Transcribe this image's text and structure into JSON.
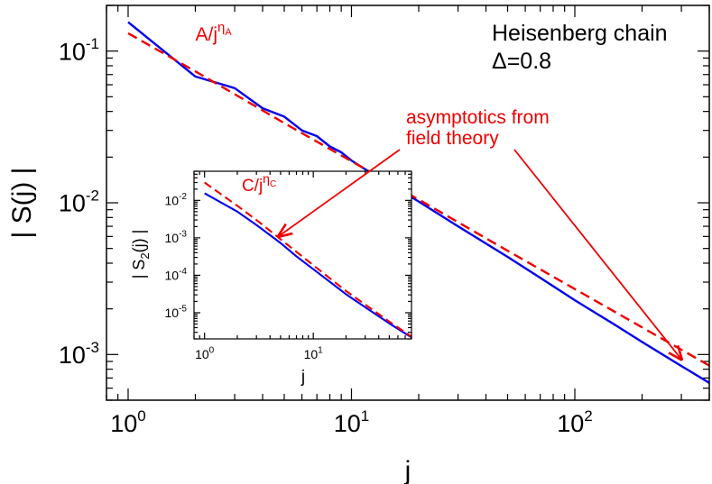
{
  "chart_data": [
    {
      "type": "line",
      "panel": "main",
      "xlabel": "j",
      "ylabel": "| S(j) |",
      "xscale": "log",
      "yscale": "log",
      "xlim": [
        0.8,
        400
      ],
      "ylim": [
        0.0005,
        0.2
      ],
      "xticks": [
        {
          "value": 1,
          "base": "10",
          "exp": "0"
        },
        {
          "value": 10,
          "base": "10",
          "exp": "1"
        },
        {
          "value": 100,
          "base": "10",
          "exp": "2"
        }
      ],
      "yticks": [
        {
          "value": 0.1,
          "base": "10",
          "exp": "-1"
        },
        {
          "value": 0.01,
          "base": "10",
          "exp": "-2"
        },
        {
          "value": 0.001,
          "base": "10",
          "exp": "-3"
        }
      ],
      "legend_text": {
        "line1": "Heisenberg chain",
        "line2": "Δ=0.8"
      },
      "series": [
        {
          "style": "solid",
          "color": "#0000ee",
          "x": [
            1,
            2,
            3,
            4,
            5,
            6,
            7,
            8,
            9,
            10,
            12,
            15,
            20,
            30,
            50,
            70,
            100,
            150,
            200,
            300,
            400
          ],
          "y": [
            0.155,
            0.068,
            0.057,
            0.042,
            0.037,
            0.03,
            0.0275,
            0.0235,
            0.0215,
            0.019,
            0.016,
            0.0132,
            0.0102,
            0.007,
            0.0044,
            0.0032,
            0.00228,
            0.00158,
            0.00121,
            0.00084,
            0.00065
          ]
        },
        {
          "style": "dashed",
          "color": "#ee0000",
          "x": [
            1,
            2,
            3,
            5,
            10,
            20,
            50,
            100,
            200,
            400
          ],
          "y": [
            0.131,
            0.0735,
            0.052,
            0.0335,
            0.0188,
            0.0105,
            0.00483,
            0.0027,
            0.00151,
            0.000845
          ]
        }
      ],
      "annotations": {
        "fit_label": {
          "prefix": "A/j",
          "sup": "η",
          "sub": "A",
          "x": 2,
          "y": 0.117
        },
        "asymptotics_line1": "asymptotics from",
        "asymptotics_line2": "field theory",
        "arrow_target": {
          "x": 300,
          "y": 0.00093
        }
      }
    },
    {
      "type": "line",
      "panel": "inset",
      "xlabel": "j",
      "ylabel_main": "| S",
      "ylabel_sub": "2",
      "ylabel_tail": "(j) |",
      "xscale": "log",
      "yscale": "log",
      "xlim": [
        0.8,
        80
      ],
      "ylim": [
        2e-06,
        0.06
      ],
      "xticks": [
        {
          "value": 1,
          "base": "10",
          "exp": "0"
        },
        {
          "value": 10,
          "base": "10",
          "exp": "1"
        }
      ],
      "yticks": [
        {
          "value": 0.01,
          "base": "10",
          "exp": "-2"
        },
        {
          "value": 0.001,
          "base": "10",
          "exp": "-3"
        },
        {
          "value": 0.0001,
          "base": "10",
          "exp": "-4"
        },
        {
          "value": 1e-05,
          "base": "10",
          "exp": "-5"
        }
      ],
      "series": [
        {
          "style": "solid",
          "color": "#0000ee",
          "x": [
            1,
            2,
            3,
            5,
            7,
            10,
            20,
            30,
            50,
            80
          ],
          "y": [
            0.0155,
            0.005,
            0.0022,
            0.00073,
            0.00032,
            0.000145,
            3.1e-05,
            1.4e-05,
            5.2e-06,
            2.2e-06
          ]
        },
        {
          "style": "dashed",
          "color": "#ee0000",
          "x": [
            1,
            2,
            3,
            5,
            10,
            20,
            50,
            80
          ],
          "y": [
            0.03,
            0.0072,
            0.003,
            0.00092,
            0.000185,
            3.8e-05,
            5.8e-06,
            2.3e-06
          ]
        }
      ],
      "annotations": {
        "fit_label": {
          "prefix": "C/j",
          "sup": "η",
          "sub": "C",
          "x": 2.2,
          "y": 0.0175
        },
        "arrow_target": {
          "x": 4.8,
          "y": 0.0011
        }
      }
    }
  ]
}
